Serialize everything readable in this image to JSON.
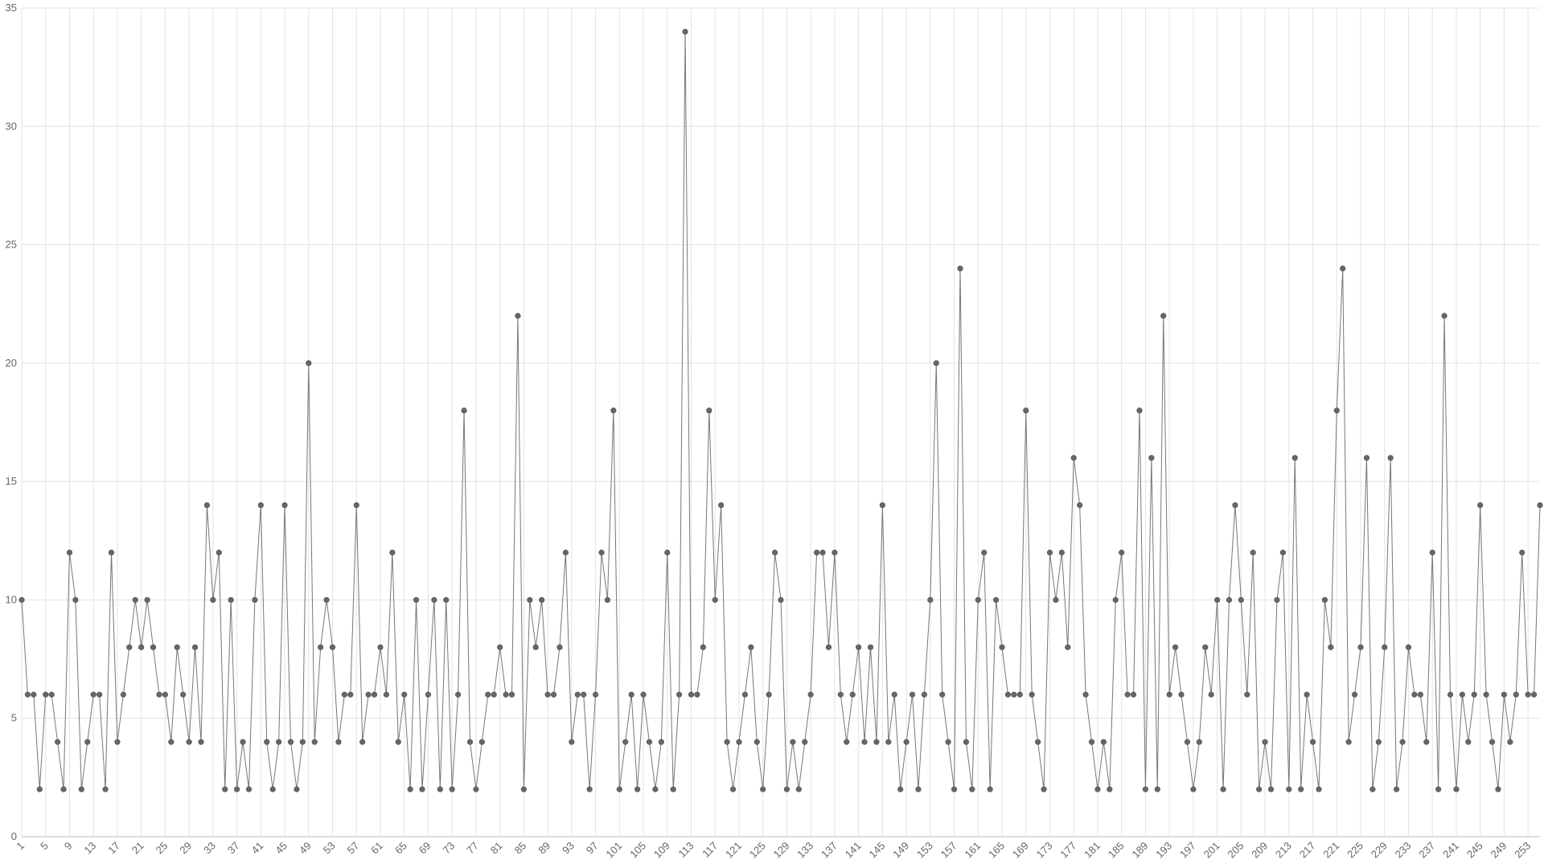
{
  "chart_data": {
    "type": "line",
    "categories": [
      1,
      null,
      null,
      null,
      5,
      null,
      null,
      null,
      9,
      null,
      null,
      null,
      13,
      null,
      null,
      null,
      17,
      null,
      null,
      null,
      21,
      null,
      null,
      null,
      25,
      null,
      null,
      null,
      29,
      null,
      null,
      null,
      33,
      null,
      null,
      null,
      37,
      null,
      null,
      null,
      41,
      null,
      null,
      null,
      45,
      null,
      null,
      null,
      49,
      null,
      null,
      null,
      53,
      null,
      null,
      null,
      57,
      null,
      null,
      null,
      61,
      null,
      null,
      null,
      65,
      null,
      null,
      null,
      69,
      null,
      null,
      null,
      73,
      null,
      null,
      null,
      77,
      null,
      null,
      null,
      81,
      null,
      null,
      null,
      85,
      null,
      null,
      null,
      89,
      null,
      null,
      null,
      93,
      null,
      null,
      null,
      97,
      null,
      null,
      null,
      101,
      null,
      null,
      null,
      105,
      null,
      null,
      null,
      109,
      null,
      null,
      null,
      113,
      null,
      null,
      null,
      117,
      null,
      null,
      null,
      121,
      null,
      null,
      null,
      125,
      null,
      null,
      null,
      129,
      null,
      null,
      null,
      133,
      null,
      null,
      null,
      137,
      null,
      null,
      null,
      141,
      null,
      null,
      null,
      145,
      null,
      null,
      null,
      149,
      null,
      null,
      null,
      153,
      null,
      null,
      null,
      157,
      null,
      null,
      null,
      161,
      null,
      null,
      null,
      165,
      null,
      null,
      null,
      169,
      null,
      null,
      null,
      173,
      null,
      null,
      null,
      177,
      null,
      null,
      null,
      181,
      null,
      null,
      null,
      185,
      null,
      null,
      null,
      189,
      null,
      null,
      null,
      193,
      null,
      null,
      null,
      197,
      null,
      null,
      null,
      201,
      null,
      null,
      null,
      205,
      null,
      null,
      null,
      209,
      null,
      null,
      null,
      213,
      null,
      null,
      null,
      217,
      null,
      null,
      null,
      221,
      null,
      null,
      null,
      225,
      null,
      null,
      null,
      229,
      null,
      null,
      null,
      233,
      null,
      null,
      null,
      237,
      null,
      null,
      null,
      241,
      null,
      null,
      null,
      245,
      null,
      null,
      null,
      249,
      null,
      null,
      null,
      253,
      null,
      null
    ],
    "values": [
      10,
      6,
      6,
      2,
      6,
      6,
      4,
      2,
      12,
      10,
      2,
      4,
      6,
      6,
      2,
      12,
      4,
      6,
      8,
      10,
      8,
      10,
      8,
      6,
      6,
      4,
      8,
      6,
      4,
      8,
      4,
      14,
      10,
      12,
      2,
      10,
      2,
      4,
      2,
      10,
      14,
      4,
      2,
      4,
      14,
      4,
      2,
      4,
      20,
      4,
      8,
      10,
      8,
      4,
      6,
      6,
      14,
      4,
      6,
      6,
      8,
      6,
      12,
      4,
      6,
      2,
      10,
      2,
      6,
      10,
      2,
      10,
      2,
      6,
      18,
      4,
      2,
      4,
      6,
      6,
      8,
      6,
      6,
      22,
      2,
      10,
      8,
      10,
      6,
      6,
      8,
      12,
      4,
      6,
      6,
      2,
      6,
      12,
      10,
      18,
      2,
      4,
      6,
      2,
      6,
      4,
      2,
      4,
      12,
      2,
      6,
      34,
      6,
      6,
      8,
      18,
      10,
      14,
      4,
      2,
      4,
      6,
      8,
      4,
      2,
      6,
      12,
      10,
      2,
      4,
      2,
      4,
      6,
      12,
      12,
      8,
      12,
      6,
      4,
      6,
      8,
      4,
      8,
      4,
      14,
      4,
      6,
      2,
      4,
      6,
      2,
      6,
      10,
      20,
      6,
      4,
      2,
      24,
      4,
      2,
      10,
      12,
      2,
      10,
      8,
      6,
      6,
      6,
      18,
      6,
      4,
      2,
      12,
      10,
      12,
      8,
      16,
      14,
      6,
      4,
      2,
      4,
      2,
      10,
      12,
      6,
      6,
      18,
      2,
      16,
      2,
      22,
      6,
      8,
      6,
      4,
      2,
      4,
      8,
      6,
      10,
      2,
      10,
      14,
      10,
      6,
      12,
      2,
      4,
      2,
      10,
      12,
      2,
      16,
      2,
      6,
      4,
      2,
      10,
      8,
      18,
      24,
      4,
      6,
      8,
      16,
      2,
      4,
      8,
      16,
      2,
      4,
      8,
      6,
      6,
      4,
      12,
      2,
      22,
      6,
      2,
      6,
      4,
      6,
      14,
      6,
      4,
      2,
      6,
      4,
      6,
      12,
      6,
      6,
      14
    ],
    "color": "#666666",
    "ylim": [
      0,
      35
    ],
    "yticks": [
      0,
      5,
      10,
      15,
      20,
      25,
      30,
      35
    ],
    "grid": true
  }
}
